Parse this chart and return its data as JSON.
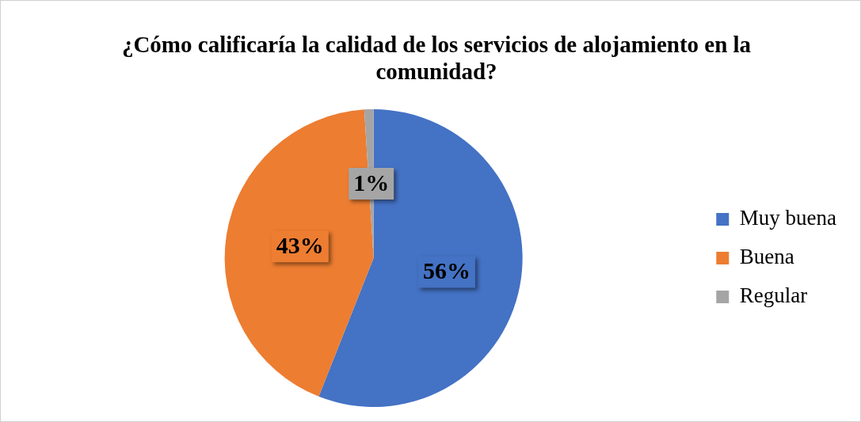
{
  "chart_data": {
    "type": "pie",
    "title": "¿Cómo calificaría la calidad de los servicios de alojamiento en la comunidad?",
    "categories": [
      "Muy buena",
      "Buena",
      "Regular"
    ],
    "values": [
      56,
      43,
      1
    ],
    "colors": [
      "#4472c4",
      "#ed7d31",
      "#a5a5a5"
    ],
    "value_labels": [
      "56%",
      "43%",
      "1%"
    ],
    "legend": "right"
  }
}
